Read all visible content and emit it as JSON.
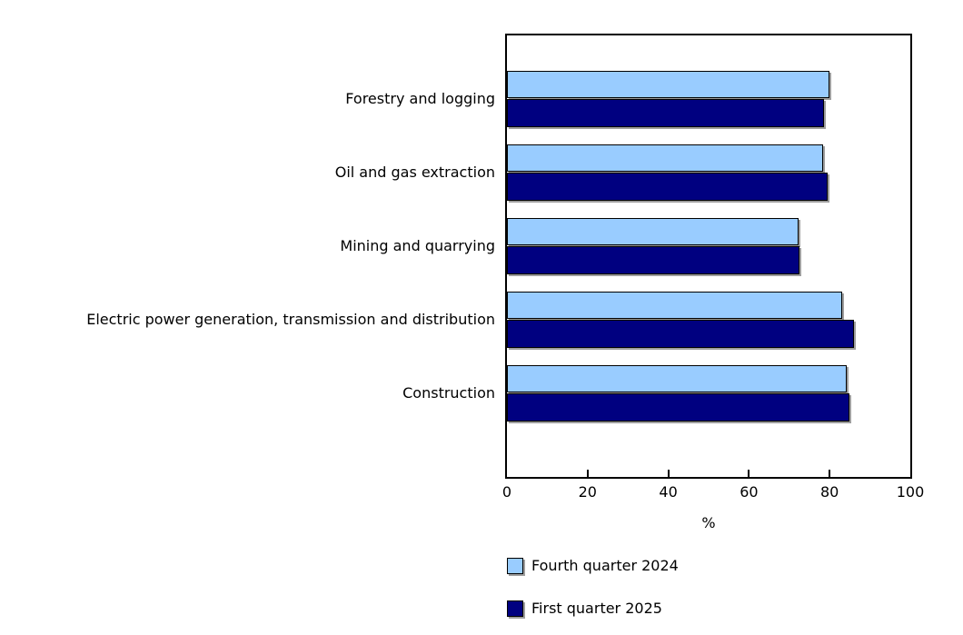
{
  "chart_data": {
    "type": "bar",
    "orientation": "horizontal",
    "title": "",
    "xlabel": "%",
    "ylabel": "",
    "xlim": [
      0,
      100
    ],
    "xticks": [
      0,
      20,
      40,
      60,
      80,
      100
    ],
    "grid": false,
    "legend_position": "bottom-left",
    "categories": [
      "Forestry and logging",
      "Oil and gas extraction",
      "Mining and quarrying",
      "Electric power generation, transmission and distribution",
      "Construction"
    ],
    "series": [
      {
        "name": "Fourth quarter 2024",
        "color": "#99CCFF",
        "values": [
          79.9,
          78.4,
          72.3,
          83.1,
          84.2
        ]
      },
      {
        "name": "First quarter 2025",
        "color": "#000080",
        "values": [
          78.6,
          79.4,
          72.5,
          86.1,
          84.8
        ]
      }
    ]
  },
  "colors": {
    "background": "#FFFFFF",
    "frame_border": "#000000",
    "bar_border": "#000000",
    "bar_shadow": "#9E9E9E",
    "text": "#000000",
    "series_light": "#99CCFF",
    "series_dark": "#000080"
  }
}
